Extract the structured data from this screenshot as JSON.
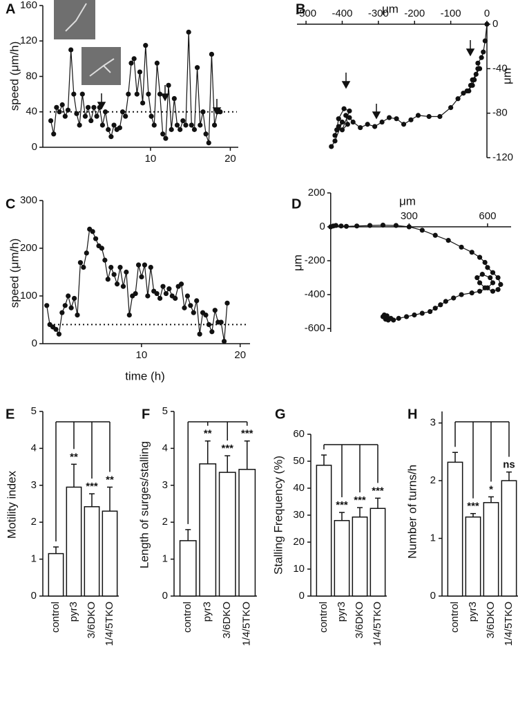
{
  "chart_data": [
    {
      "panel": "A",
      "type": "line",
      "y_label": "speed (μm/h)",
      "color": "#111111",
      "x": [
        -2.5,
        -2.14,
        -1.78,
        -1.42,
        -1.06,
        -0.7,
        -0.34,
        0.02,
        0.38,
        0.74,
        1.1,
        1.46,
        1.82,
        2.18,
        2.54,
        2.9,
        3.26,
        3.62,
        3.98,
        4.34,
        4.7,
        5.06,
        5.42,
        5.78,
        6.14,
        6.5,
        6.86,
        7.22,
        7.58,
        7.94,
        8.3,
        8.66,
        9.02,
        9.38,
        9.74,
        10.1,
        10.46,
        10.82,
        11.18,
        11.54,
        11.9,
        12.26,
        12.62,
        12.98,
        13.34,
        13.7,
        14.06,
        14.42,
        14.78,
        15.14,
        15.5,
        15.86,
        16.22,
        16.58,
        16.94,
        17.3,
        17.66,
        18.02,
        18.38,
        18.74
      ],
      "values": [
        30,
        15,
        45,
        40,
        48,
        35,
        42,
        110,
        60,
        38,
        25,
        60,
        35,
        45,
        30,
        45,
        35,
        45,
        25,
        40,
        20,
        12,
        25,
        20,
        22,
        40,
        35,
        60,
        95,
        100,
        60,
        85,
        50,
        115,
        60,
        35,
        25,
        95,
        60,
        15,
        10,
        70,
        20,
        55,
        25,
        20,
        30,
        25,
        130,
        25,
        20,
        90,
        25,
        40,
        15,
        5,
        105,
        25,
        40,
        40
      ],
      "xlim": [
        -3.5,
        21
      ],
      "ylim": [
        0,
        160
      ],
      "xticks": [
        10,
        20
      ],
      "yticks": [
        0,
        40,
        80,
        120,
        160
      ],
      "reference_line": 40
    },
    {
      "panel": "B",
      "type": "line",
      "x_label": "μm",
      "y_label": "μm",
      "color": "#111111",
      "x": [
        0,
        -5,
        -10,
        -15,
        -25,
        -20,
        -30,
        -40,
        -45,
        -50,
        -35,
        -25,
        -40,
        -55,
        -65,
        -80,
        -100,
        -130,
        -160,
        -190,
        -210,
        -230,
        -250,
        -270,
        -290,
        -310,
        -330,
        -350,
        -370,
        -380,
        -390,
        -385,
        -400,
        -380,
        -395,
        -410,
        -415,
        -420,
        -410,
        -400,
        -420,
        -430
      ],
      "values": [
        0,
        -15,
        -25,
        -30,
        -35,
        -40,
        -45,
        -50,
        -55,
        -60,
        -50,
        -40,
        -55,
        -60,
        -62,
        -67,
        -75,
        -83,
        -83,
        -82,
        -86,
        -90,
        -85,
        -84,
        -88,
        -92,
        -90,
        -93,
        -88,
        -84,
        -82,
        -90,
        -95,
        -78,
        -76,
        -85,
        -95,
        -100,
        -92,
        -88,
        -105,
        -110
      ],
      "xlim": [
        -525,
        0
      ],
      "ylim": [
        -120,
        0
      ],
      "xticks": [
        -500,
        -400,
        -300,
        -200,
        -100,
        0
      ],
      "yticks": [
        0,
        -40,
        -80,
        -120
      ]
    },
    {
      "panel": "C",
      "type": "line",
      "x_label": "time (h)",
      "y_label": "speed (μm/h)",
      "color": "#111111",
      "x": [
        0.4,
        0.71,
        1.02,
        1.33,
        1.64,
        1.95,
        2.26,
        2.57,
        2.88,
        3.19,
        3.5,
        3.81,
        4.12,
        4.43,
        4.74,
        5.05,
        5.36,
        5.67,
        5.98,
        6.29,
        6.6,
        6.91,
        7.22,
        7.53,
        7.84,
        8.15,
        8.46,
        8.77,
        9.08,
        9.39,
        9.7,
        10.01,
        10.32,
        10.63,
        10.94,
        11.25,
        11.56,
        11.87,
        12.18,
        12.49,
        12.8,
        13.11,
        13.42,
        13.73,
        14.04,
        14.35,
        14.66,
        14.97,
        15.28,
        15.59,
        15.9,
        16.21,
        16.52,
        16.83,
        17.14,
        17.45,
        17.76,
        18.07,
        18.38,
        18.69
      ],
      "values": [
        80,
        40,
        35,
        30,
        20,
        65,
        80,
        100,
        75,
        95,
        60,
        170,
        160,
        190,
        240,
        235,
        220,
        205,
        200,
        175,
        135,
        160,
        145,
        125,
        160,
        120,
        150,
        60,
        100,
        105,
        165,
        140,
        165,
        100,
        160,
        110,
        105,
        95,
        120,
        105,
        115,
        100,
        95,
        120,
        125,
        75,
        100,
        80,
        65,
        90,
        20,
        65,
        60,
        40,
        25,
        70,
        45,
        45,
        5,
        85
      ],
      "xlim": [
        0,
        21
      ],
      "ylim": [
        0,
        300
      ],
      "xticks": [
        10,
        20
      ],
      "yticks": [
        0,
        100,
        200,
        300
      ],
      "reference_line": 40
    },
    {
      "panel": "D",
      "type": "line",
      "x_label": "μm",
      "y_label": "μm",
      "color": "#111111",
      "x": [
        0,
        10,
        20,
        40,
        60,
        100,
        150,
        200,
        250,
        300,
        350,
        400,
        450,
        500,
        540,
        570,
        590,
        600,
        620,
        640,
        650,
        640,
        620,
        590,
        570,
        560,
        580,
        610,
        620,
        600,
        570,
        540,
        500,
        470,
        440,
        420,
        400,
        380,
        350,
        320,
        290,
        260,
        240,
        220,
        210,
        200,
        205,
        215,
        230
      ],
      "values": [
        0,
        5,
        8,
        5,
        3,
        5,
        8,
        10,
        8,
        0,
        -20,
        -50,
        -80,
        -120,
        -150,
        -180,
        -210,
        -240,
        -270,
        -300,
        -340,
        -370,
        -380,
        -360,
        -330,
        -300,
        -280,
        -300,
        -330,
        -360,
        -380,
        -390,
        -400,
        -420,
        -440,
        -460,
        -480,
        -500,
        -510,
        -520,
        -530,
        -540,
        -550,
        -550,
        -545,
        -530,
        -520,
        -525,
        -540
      ],
      "xlim": [
        -10,
        690
      ],
      "ylim": [
        -620,
        200
      ],
      "xticks": [
        300,
        600
      ],
      "yticks": [
        200,
        0,
        -200,
        -400,
        -600
      ]
    },
    {
      "panel": "E",
      "type": "bar",
      "y_label": "Motility index",
      "color": "#ffffff",
      "categories": [
        "control",
        "pyr3",
        "3/6DKO",
        "1/4/5TKO"
      ],
      "values": [
        1.15,
        2.95,
        2.42,
        2.3
      ],
      "errors": [
        0.18,
        0.62,
        0.35,
        0.65
      ],
      "significance": [
        null,
        "**",
        "***",
        "**"
      ],
      "ylim": [
        0,
        5
      ],
      "yticks": [
        0,
        1,
        2,
        3,
        4,
        5
      ]
    },
    {
      "panel": "F",
      "type": "bar",
      "y_label": "Length of surges/stalling",
      "color": "#ffffff",
      "categories": [
        "control",
        "pyr3",
        "3/6DKO",
        "1/4/5TKO"
      ],
      "values": [
        1.5,
        3.58,
        3.35,
        3.43
      ],
      "errors": [
        0.3,
        0.62,
        0.45,
        0.77
      ],
      "significance": [
        null,
        "**",
        "***",
        "***"
      ],
      "ylim": [
        0,
        5
      ],
      "yticks": [
        0,
        1,
        2,
        3,
        4,
        5
      ]
    },
    {
      "panel": "G",
      "type": "bar",
      "y_label": "Stalling Frequency (%)",
      "color": "#ffffff",
      "categories": [
        "control",
        "pyr3",
        "3/6DKO",
        "1/4/5TKO"
      ],
      "values": [
        48.5,
        28,
        29.3,
        32.5
      ],
      "errors": [
        3.8,
        3,
        3.5,
        3.8
      ],
      "significance": [
        null,
        "***",
        "***",
        "***"
      ],
      "ylim": [
        0,
        60
      ],
      "yticks": [
        0,
        10,
        20,
        30,
        40,
        50,
        60
      ]
    },
    {
      "panel": "H",
      "type": "bar",
      "y_label": "Number of turns/h",
      "color": "#ffffff",
      "categories": [
        "control",
        "pyr3",
        "3/6DKO",
        "1/4/5TKO"
      ],
      "values": [
        2.32,
        1.37,
        1.62,
        2.0
      ],
      "errors": [
        0.17,
        0.06,
        0.1,
        0.15
      ],
      "significance": [
        null,
        "***",
        "*",
        "ns"
      ],
      "ylim": [
        0,
        3.2
      ],
      "yticks": [
        0,
        1,
        2,
        3
      ]
    }
  ]
}
